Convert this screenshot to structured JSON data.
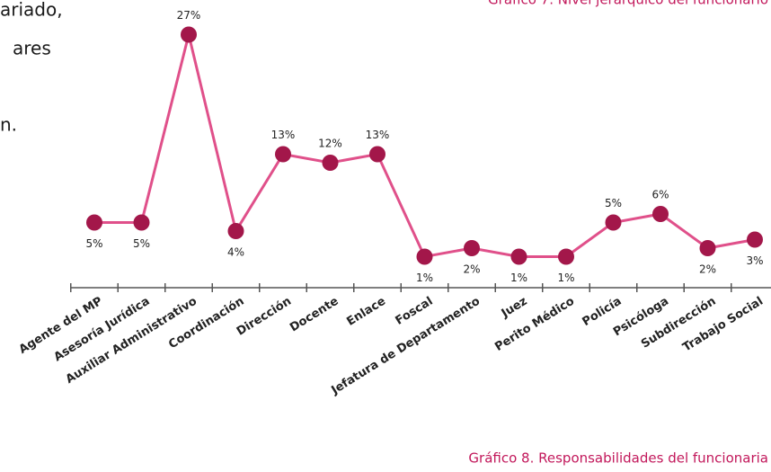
{
  "text_fragments": [
    "ariado,",
    "ares",
    "n."
  ],
  "top_caption": "Gráfico 7. Nivel jerárquico del funcionario",
  "chart_data": {
    "type": "line",
    "caption": "Gráfico 8. Responsabilidades del funcionaria",
    "categories": [
      "Agente del MP",
      "Asesoría Jurídica",
      "Auxiliar Administrativo",
      "Coordinación",
      "Dirección",
      "Docente",
      "Enlace",
      "Foscal",
      "Jefatura de Departamento",
      "Juez",
      "Perito Médico",
      "Policía",
      "Psicóloga",
      "Subdirección",
      "Trabajo Social"
    ],
    "values": [
      5,
      5,
      27,
      4,
      13,
      12,
      13,
      1,
      2,
      1,
      1,
      5,
      6,
      2,
      3
    ],
    "value_labels": [
      "5%",
      "5%",
      "27%",
      "4%",
      "13%",
      "12%",
      "13%",
      "1%",
      "2%",
      "1%",
      "1%",
      "5%",
      "6%",
      "2%",
      "3%"
    ],
    "line_color": "#e0508a",
    "marker_color": "#a3174a"
  }
}
